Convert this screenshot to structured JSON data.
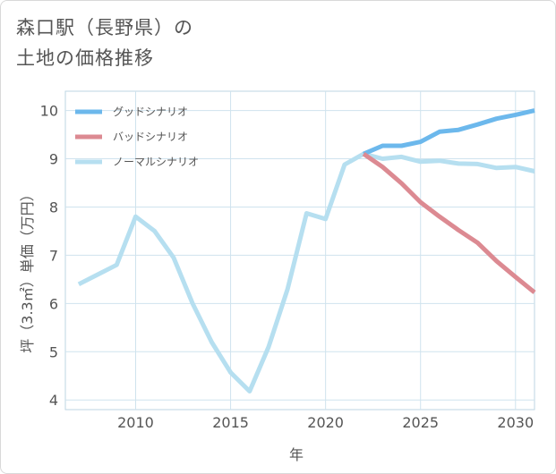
{
  "title": {
    "line1": "森口駅（長野県）の",
    "line2": "土地の価格推移"
  },
  "chart_data": {
    "type": "line",
    "xlabel": "年",
    "ylabel": "坪（3.3㎡）単価（万円）",
    "xlim": [
      2006.3,
      2031
    ],
    "ylim": [
      3.8,
      10.4
    ],
    "xticks": [
      2010,
      2015,
      2020,
      2025,
      2030
    ],
    "yticks": [
      4,
      5,
      6,
      7,
      8,
      9,
      10
    ],
    "grid": true,
    "legend_position": "top-left",
    "series": [
      {
        "name": "グッドシナリオ",
        "color": "#6cb8ec",
        "x": [
          2022,
          2023,
          2024,
          2025,
          2026,
          2027,
          2028,
          2029,
          2030,
          2031
        ],
        "y": [
          9.1,
          9.27,
          9.27,
          9.35,
          9.56,
          9.6,
          9.71,
          9.83,
          9.91,
          10.0
        ]
      },
      {
        "name": "バッドシナリオ",
        "color": "#dc8a92",
        "x": [
          2022,
          2023,
          2024,
          2025,
          2026,
          2027,
          2028,
          2029,
          2030,
          2031
        ],
        "y": [
          9.1,
          8.83,
          8.49,
          8.1,
          7.8,
          7.52,
          7.26,
          6.88,
          6.55,
          6.23
        ]
      },
      {
        "name": "ノーマルシナリオ",
        "color": "#b6dff0",
        "x": [
          2007,
          2008,
          2009,
          2010,
          2011,
          2012,
          2013,
          2014,
          2015,
          2016,
          2017,
          2018,
          2019,
          2020,
          2021,
          2022,
          2023,
          2024,
          2025,
          2026,
          2027,
          2028,
          2029,
          2030,
          2031
        ],
        "y": [
          6.4,
          6.6,
          6.8,
          7.8,
          7.5,
          6.95,
          6.0,
          5.2,
          4.57,
          4.18,
          5.1,
          6.3,
          7.87,
          7.75,
          8.88,
          9.1,
          9.0,
          9.04,
          8.94,
          8.96,
          8.9,
          8.89,
          8.81,
          8.83,
          8.74
        ]
      }
    ]
  }
}
